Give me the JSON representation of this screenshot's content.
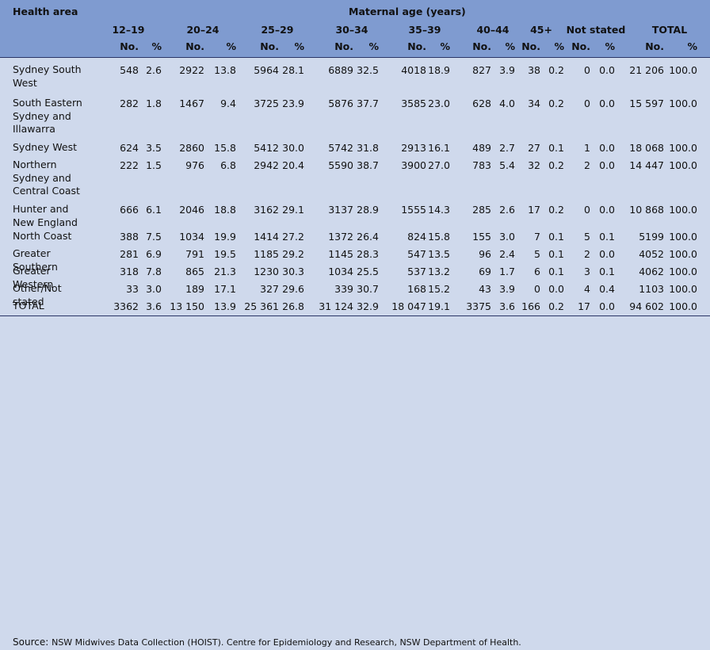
{
  "table": {
    "health_area_label": "Health area",
    "maternal_age_label": "Maternal age (years)",
    "groups": [
      "12–19",
      "20–24",
      "25–29",
      "30–34",
      "35–39",
      "40–44",
      "45+",
      "Not stated",
      "TOTAL"
    ],
    "sub_no": "No.",
    "sub_pct": "%",
    "rows": [
      {
        "area": "Sydney South West",
        "cells": [
          "548",
          "2.6",
          "2922",
          "13.8",
          "5964",
          "28.1",
          "6889",
          "32.5",
          "4018",
          "18.9",
          "827",
          "3.9",
          "38",
          "0.2",
          "0",
          "0.0",
          "21 206",
          "100.0"
        ]
      },
      {
        "area": "South Eastern Sydney and Illawarra",
        "cells": [
          "282",
          "1.8",
          "1467",
          "9.4",
          "3725",
          "23.9",
          "5876",
          "37.7",
          "3585",
          "23.0",
          "628",
          "4.0",
          "34",
          "0.2",
          "0",
          "0.0",
          "15 597",
          "100.0"
        ]
      },
      {
        "area": "Sydney West",
        "cells": [
          "624",
          "3.5",
          "2860",
          "15.8",
          "5412",
          "30.0",
          "5742",
          "31.8",
          "2913",
          "16.1",
          "489",
          "2.7",
          "27",
          "0.1",
          "1",
          "0.0",
          "18 068",
          "100.0"
        ]
      },
      {
        "area": "Northern Sydney and Central Coast",
        "cells": [
          "222",
          "1.5",
          "976",
          "6.8",
          "2942",
          "20.4",
          "5590",
          "38.7",
          "3900",
          "27.0",
          "783",
          "5.4",
          "32",
          "0.2",
          "2",
          "0.0",
          "14 447",
          "100.0"
        ]
      },
      {
        "area": "Hunter and New England",
        "cells": [
          "666",
          "6.1",
          "2046",
          "18.8",
          "3162",
          "29.1",
          "3137",
          "28.9",
          "1555",
          "14.3",
          "285",
          "2.6",
          "17",
          "0.2",
          "0",
          "0.0",
          "10 868",
          "100.0"
        ]
      },
      {
        "area": "North Coast",
        "cells": [
          "388",
          "7.5",
          "1034",
          "19.9",
          "1414",
          "27.2",
          "1372",
          "26.4",
          "824",
          "15.8",
          "155",
          "3.0",
          "7",
          "0.1",
          "5",
          "0.1",
          "5199",
          "100.0"
        ]
      },
      {
        "area": "Greater Southern",
        "cells": [
          "281",
          "6.9",
          "791",
          "19.5",
          "1185",
          "29.2",
          "1145",
          "28.3",
          "547",
          "13.5",
          "96",
          "2.4",
          "5",
          "0.1",
          "2",
          "0.0",
          "4052",
          "100.0"
        ]
      },
      {
        "area": "Greater Western",
        "cells": [
          "318",
          "7.8",
          "865",
          "21.3",
          "1230",
          "30.3",
          "1034",
          "25.5",
          "537",
          "13.2",
          "69",
          "1.7",
          "6",
          "0.1",
          "3",
          "0.1",
          "4062",
          "100.0"
        ]
      },
      {
        "area": "Other/Not stated",
        "cells": [
          "33",
          "3.0",
          "189",
          "17.1",
          "327",
          "29.6",
          "339",
          "30.7",
          "168",
          "15.2",
          "43",
          "3.9",
          "0",
          "0.0",
          "4",
          "0.4",
          "1103",
          "100.0"
        ]
      },
      {
        "area": "TOTAL",
        "cells": [
          "3362",
          "3.6",
          "13 150",
          "13.9",
          "25 361",
          "26.8",
          "31 124",
          "32.9",
          "18 047",
          "19.1",
          "3375",
          "3.6",
          "166",
          "0.2",
          "17",
          "0.0",
          "94 602",
          "100.0"
        ]
      }
    ]
  },
  "source": {
    "label": "Source:",
    "text": "NSW Midwives Data Collection (HOIST). Centre for Epidemiology and Research, NSW Department of Health."
  },
  "colors": {
    "header_bg": "#7f9bd0",
    "body_bg": "#cfd9ec",
    "rule": "#2a3566"
  }
}
